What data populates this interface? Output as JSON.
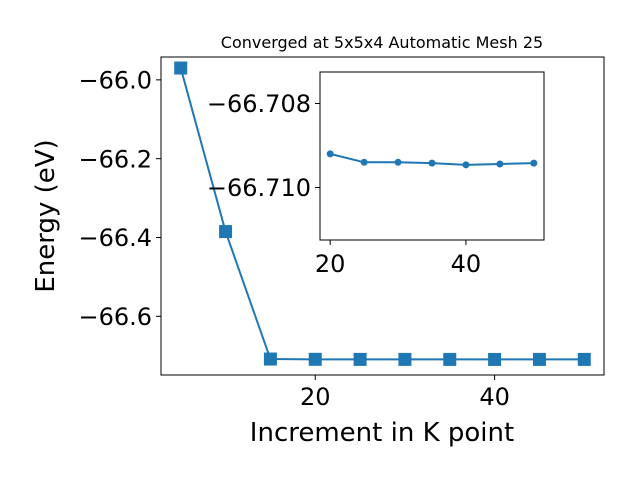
{
  "chart_data": [
    {
      "type": "line",
      "title": "Converged at 5x5x4 Automatic Mesh 25",
      "xlabel": "Increment in K point",
      "ylabel": "Energy (eV)",
      "xlim": [
        2.8,
        52.2
      ],
      "ylim": [
        -66.749,
        -65.942
      ],
      "xticks": [
        20,
        40
      ],
      "yticks": [
        -66.0,
        -66.2,
        -66.4,
        -66.6
      ],
      "xtick_labels": [
        "20",
        "40"
      ],
      "ytick_labels": [
        "−66.0",
        "−66.2",
        "−66.4",
        "−66.6"
      ],
      "marker": "square",
      "color": "#1f77b4",
      "grid": false,
      "x": [
        5,
        10,
        15,
        20,
        25,
        30,
        35,
        40,
        45,
        50
      ],
      "y": [
        -65.97,
        -66.385,
        -66.7085,
        -66.7092,
        -66.7094,
        -66.7094,
        -66.7094,
        -66.7095,
        -66.7094,
        -66.7094
      ]
    },
    {
      "type": "line",
      "title": "",
      "xlabel": "",
      "ylabel": "",
      "xlim": [
        18.5,
        51.5
      ],
      "ylim": [
        -66.71125,
        -66.70725
      ],
      "xticks": [
        20,
        40
      ],
      "yticks": [
        -66.71,
        -66.708
      ],
      "xtick_labels": [
        "20",
        "40"
      ],
      "ytick_labels": [
        "−66.710",
        "−66.708"
      ],
      "marker": "circle",
      "color": "#1f77b4",
      "grid": false,
      "x": [
        20,
        25,
        30,
        35,
        40,
        45,
        50
      ],
      "y": [
        -66.7092,
        -66.7094,
        -66.7094,
        -66.70942,
        -66.70946,
        -66.70944,
        -66.70942
      ]
    }
  ]
}
